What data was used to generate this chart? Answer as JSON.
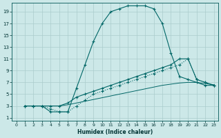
{
  "xlabel": "Humidex (Indice chaleur)",
  "bg_color": "#cce8e8",
  "grid_color": "#aacccc",
  "line_color": "#006666",
  "xlim": [
    -0.5,
    23.5
  ],
  "ylim": [
    0.5,
    20.5
  ],
  "xticks": [
    0,
    1,
    2,
    3,
    4,
    5,
    6,
    7,
    8,
    9,
    10,
    11,
    12,
    13,
    14,
    15,
    16,
    17,
    18,
    19,
    20,
    21,
    22,
    23
  ],
  "yticks": [
    1,
    3,
    5,
    7,
    9,
    11,
    13,
    15,
    17,
    19
  ],
  "curve1_x": [
    1,
    2,
    3,
    4,
    5,
    6,
    7,
    8,
    9,
    10,
    11,
    12,
    13,
    14,
    15,
    16,
    17,
    18,
    19,
    20,
    21,
    22,
    23
  ],
  "curve1_y": [
    3,
    3,
    3,
    2,
    2,
    2,
    6,
    10,
    14,
    17,
    19,
    19.5,
    20,
    20,
    20,
    19.5,
    17,
    12,
    8,
    7.5,
    7,
    6.5,
    6.5
  ],
  "curve2_x": [
    1,
    2,
    3,
    4,
    5,
    6,
    7,
    8,
    9,
    10,
    11,
    12,
    13,
    14,
    15,
    16,
    17,
    18,
    19,
    20,
    21,
    22,
    23
  ],
  "curve2_y": [
    3,
    3,
    3,
    3,
    3,
    3.5,
    4.5,
    5,
    5.5,
    6,
    6.5,
    7,
    7.5,
    8,
    8.5,
    9,
    9.5,
    10,
    11,
    11,
    7.5,
    7,
    6.5
  ],
  "curve3_x": [
    1,
    2,
    3,
    4,
    5,
    6,
    7,
    8,
    9,
    10,
    11,
    12,
    13,
    14,
    15,
    16,
    17,
    18,
    19,
    20,
    21,
    22,
    23
  ],
  "curve3_y": [
    3,
    3,
    3,
    2.5,
    2,
    2,
    3,
    4,
    5,
    5.5,
    6,
    6.5,
    7,
    7.5,
    8,
    8.5,
    9,
    9.5,
    10,
    11,
    7.5,
    7,
    6.5
  ],
  "curve4_x": [
    1,
    2,
    3,
    4,
    5,
    6,
    7,
    8,
    9,
    10,
    11,
    12,
    13,
    14,
    15,
    16,
    17,
    18,
    19,
    20,
    21,
    22,
    23
  ],
  "curve4_y": [
    3,
    3,
    3,
    3,
    3,
    3.2,
    3.5,
    3.8,
    4.1,
    4.4,
    4.7,
    5.0,
    5.3,
    5.6,
    5.9,
    6.2,
    6.5,
    6.7,
    6.9,
    7.0,
    7.0,
    6.8,
    6.6
  ]
}
